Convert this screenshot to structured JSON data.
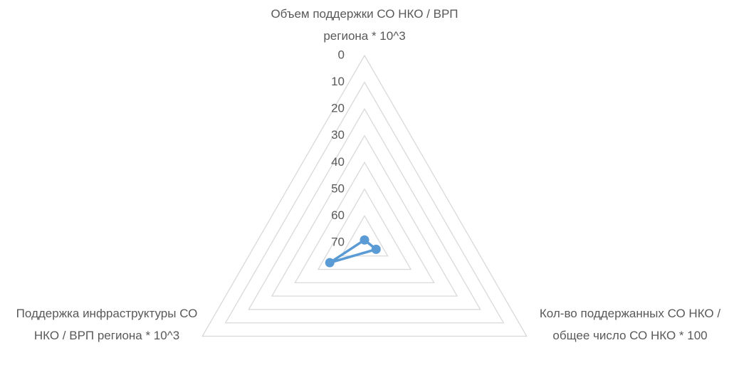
{
  "chart_data": {
    "type": "radar",
    "categories": [
      "Объем поддержки СО НКО / ВРП региона * 10^3",
      "Кол-во поддержанных СО НКО / общее число СО НКО * 100",
      "Поддержка инфраструктуры СО НКО / ВРП региона * 10^3"
    ],
    "values": [
      69,
      65,
      55
    ],
    "color": "#5b9bd5",
    "ylim": [
      0,
      70
    ],
    "reverse": true,
    "yticks": [
      0,
      10,
      20,
      30,
      40,
      50,
      60,
      70
    ],
    "grid": true
  }
}
